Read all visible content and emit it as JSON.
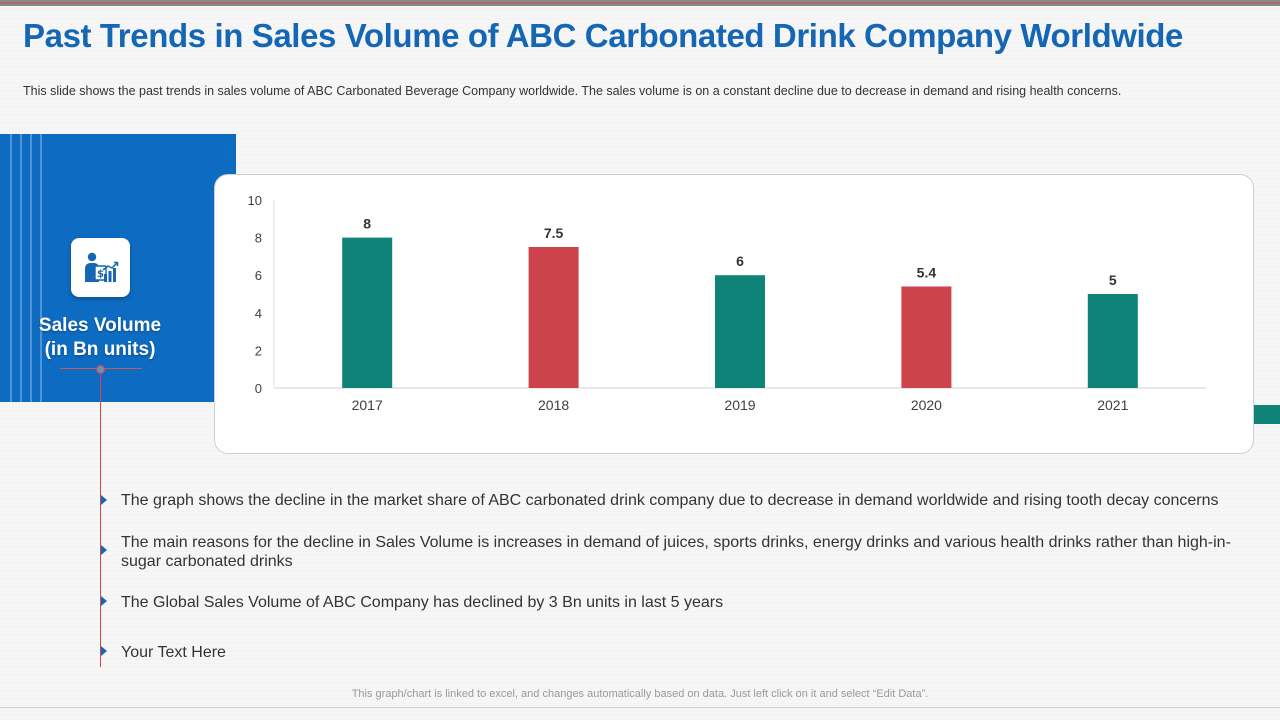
{
  "title": "Past Trends in Sales Volume of ABC Carbonated Drink Company Worldwide",
  "description": "This slide shows the past trends in sales volume of ABC Carbonated  Beverage  Company worldwide.  The  sales volume  is on a constant decline due to decrease in demand and rising health concerns.",
  "panel": {
    "label_line1": "Sales Volume",
    "label_line2": "(in Bn units)",
    "icon": "businessman-sales-chart-icon"
  },
  "colors": {
    "title": "#1566b4",
    "panel": "#0e6bc2",
    "teal": "#0f8378",
    "red": "#cc434b",
    "accent_line": "#d9434b"
  },
  "chart_data": {
    "type": "bar",
    "title": "",
    "xlabel": "",
    "ylabel": "Sales Volume (in Bn units)",
    "categories": [
      "2017",
      "2018",
      "2019",
      "2020",
      "2021"
    ],
    "values": [
      8,
      7.5,
      6,
      5.4,
      5
    ],
    "value_labels": [
      "8",
      "7.5",
      "6",
      "5.4",
      "5"
    ],
    "bar_colors": [
      "#0f8378",
      "#cc434b",
      "#0f8378",
      "#cc434b",
      "#0f8378"
    ],
    "ylim": [
      0,
      10
    ],
    "yticks": [
      "0",
      "2",
      "4",
      "6",
      "8",
      "10"
    ],
    "grid": false,
    "legend": "none"
  },
  "bullets": [
    "The graph shows the decline in the market share of ABC carbonated drink company due to decrease in demand worldwide and rising tooth decay concerns",
    "The main reasons for the decline in Sales Volume is increases in demand of juices, sports drinks, energy drinks and various health drinks rather than high-in-sugar carbonated drinks",
    "The Global Sales Volume of ABC Company has declined by 3 Bn units in last 5 years",
    "Your Text Here"
  ],
  "footnote": "This graph/chart is linked to excel,  and changes automatically based on data. Just left click on it and select “Edit Data”."
}
